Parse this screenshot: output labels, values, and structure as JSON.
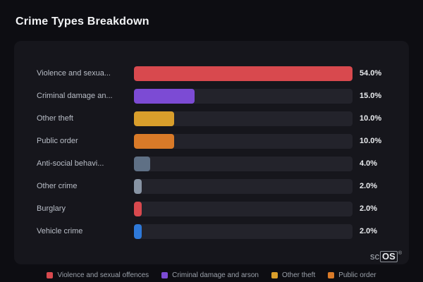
{
  "title": "Crime Types Breakdown",
  "watermark": {
    "prefix": "sc",
    "box": "OS",
    "reg": "®"
  },
  "chart_data": {
    "type": "bar",
    "orientation": "horizontal",
    "title": "Crime Types Breakdown",
    "xlabel": "",
    "ylabel": "",
    "max_value": 54,
    "grid": false,
    "legend_position": "bottom",
    "categories": [
      "Violence and sexua...",
      "Criminal damage an...",
      "Other theft",
      "Public order",
      "Anti-social behavi...",
      "Other crime",
      "Burglary",
      "Vehicle crime"
    ],
    "values": [
      54,
      15,
      10,
      10,
      4,
      2,
      2,
      2
    ],
    "value_labels": [
      "54.0%",
      "15.0%",
      "10.0%",
      "10.0%",
      "4.0%",
      "2.0%",
      "2.0%",
      "2.0%"
    ],
    "bar_colors": [
      "#d8494e",
      "#7c4bd4",
      "#d99e2b",
      "#d97a28",
      "#5f7085",
      "#8894a4",
      "#d8494e",
      "#2e79d9"
    ],
    "legend": [
      {
        "label": "Violence and sexual offences",
        "color": "#d8494e"
      },
      {
        "label": "Criminal damage and arson",
        "color": "#7c4bd4"
      },
      {
        "label": "Other theft",
        "color": "#d99e2b"
      },
      {
        "label": "Public order",
        "color": "#d97a28"
      }
    ]
  }
}
